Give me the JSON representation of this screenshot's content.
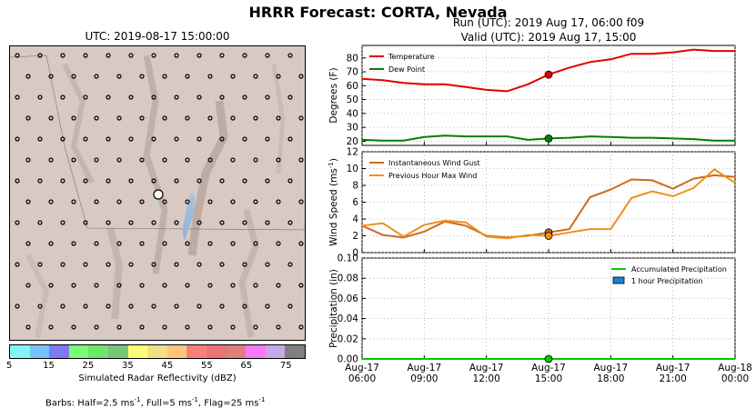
{
  "title": "HRRR Forecast: CORTA, Nevada",
  "map": {
    "title": "UTC: 2019-08-17 15:00:00",
    "colorbar": {
      "colors": [
        "#7ef6f7",
        "#74c3fa",
        "#7d7af6",
        "#78fc76",
        "#70e46d",
        "#78c578",
        "#fdfd78",
        "#f2e086",
        "#ffc679",
        "#f97f79",
        "#ea7474",
        "#dd7f7c",
        "#f978f9",
        "#c8a8e6",
        "#7f7f7f"
      ],
      "ticks": [
        "5",
        "15",
        "25",
        "35",
        "45",
        "55",
        "65",
        "75"
      ],
      "label": "Simulated Radar Reflectivity (dBZ)"
    },
    "barbs_note": {
      "prefix": "Barbs: Half=2.5 ms",
      "mid1": ", Full=5 ms",
      "mid2": ", Flag=25 ms",
      "sup": "-1"
    }
  },
  "run": {
    "line1": "Run (UTC): 2019 Aug 17, 06:00 f09",
    "line2": "Valid (UTC): 2019 Aug 17, 15:00"
  },
  "chart_data": [
    {
      "type": "line",
      "ylabel": "Degrees (F)",
      "ylim": [
        17,
        89
      ],
      "yticks": [
        20,
        30,
        40,
        50,
        60,
        70,
        80
      ],
      "xlim": [
        0,
        18
      ],
      "grid": true,
      "legend_position": "top-left",
      "series": [
        {
          "name": "Temperature",
          "color": "#e00000",
          "x": [
            0,
            1,
            2,
            3,
            4,
            5,
            6,
            7,
            8,
            9,
            10,
            11,
            12,
            13,
            14,
            15,
            16,
            17,
            18
          ],
          "y": [
            65,
            64,
            62,
            61,
            61,
            59,
            57,
            56,
            61,
            68,
            73,
            77,
            79,
            83,
            83,
            84,
            86,
            85,
            85
          ]
        },
        {
          "name": "Dew Point",
          "color": "#008000",
          "x": [
            0,
            1,
            2,
            3,
            4,
            5,
            6,
            7,
            8,
            9,
            10,
            11,
            12,
            13,
            14,
            15,
            16,
            17,
            18
          ],
          "y": [
            21,
            20.5,
            20.5,
            23,
            24,
            23.5,
            23.5,
            23.5,
            21,
            22,
            22.5,
            23.5,
            23,
            22.5,
            22.5,
            22,
            21.5,
            20.5,
            20.5
          ]
        }
      ],
      "valid_marker_x": 9
    },
    {
      "type": "line",
      "ylabel": "Wind Speed (ms",
      "ylabel_sup": "-1",
      "ylabel_suffix": ")",
      "ylim": [
        0,
        12
      ],
      "yticks": [
        0,
        2,
        4,
        6,
        8,
        10,
        12
      ],
      "xlim": [
        0,
        18
      ],
      "grid": true,
      "legend_position": "top-left",
      "series": [
        {
          "name": "Instantaneous Wind Gust",
          "color": "#cc6b1e",
          "x": [
            0,
            1,
            2,
            3,
            4,
            5,
            6,
            7,
            8,
            9,
            10,
            11,
            12,
            13,
            14,
            15,
            16,
            17,
            18
          ],
          "y": [
            3.2,
            2.1,
            1.8,
            2.5,
            3.7,
            3.2,
            2.0,
            1.8,
            2.0,
            2.4,
            2.8,
            6.6,
            7.5,
            8.7,
            8.6,
            7.6,
            8.8,
            9.2,
            9.0
          ]
        },
        {
          "name": "Previous Hour Max Wind",
          "color": "#f0901c",
          "x": [
            0,
            1,
            2,
            3,
            4,
            5,
            6,
            7,
            8,
            9,
            10,
            11,
            12,
            13,
            14,
            15,
            16,
            17,
            18
          ],
          "y": [
            3.2,
            3.5,
            1.9,
            3.3,
            3.8,
            3.6,
            1.9,
            1.7,
            2.1,
            2.0,
            2.4,
            2.8,
            2.8,
            6.5,
            7.3,
            6.7,
            7.7,
            9.9,
            8.3
          ]
        }
      ],
      "valid_marker_x": 9
    },
    {
      "type": "line",
      "ylabel": "Precipitation (in)",
      "ylim": [
        0,
        0.1
      ],
      "yticks": [
        "0.00",
        "0.02",
        "0.04",
        "0.06",
        "0.08",
        "0.10"
      ],
      "xlim": [
        0,
        18
      ],
      "xticks": [
        {
          "x": 0,
          "line1": "Aug-17",
          "line2": "06:00"
        },
        {
          "x": 3,
          "line1": "Aug-17",
          "line2": "09:00"
        },
        {
          "x": 6,
          "line1": "Aug-17",
          "line2": "12:00"
        },
        {
          "x": 9,
          "line1": "Aug-17",
          "line2": "15:00"
        },
        {
          "x": 12,
          "line1": "Aug-17",
          "line2": "18:00"
        },
        {
          "x": 15,
          "line1": "Aug-17",
          "line2": "21:00"
        },
        {
          "x": 18,
          "line1": "Aug-18",
          "line2": "00:00"
        }
      ],
      "grid": true,
      "legend_position": "top-right",
      "series": [
        {
          "name": "Accumulated Precipitation",
          "color": "#00cc00",
          "x": [
            0,
            18
          ],
          "y": [
            0,
            0
          ]
        }
      ],
      "bars_legend": {
        "name": "1 hour Precipitation",
        "color": "#1f7fd6"
      },
      "valid_marker_x": 9
    }
  ]
}
